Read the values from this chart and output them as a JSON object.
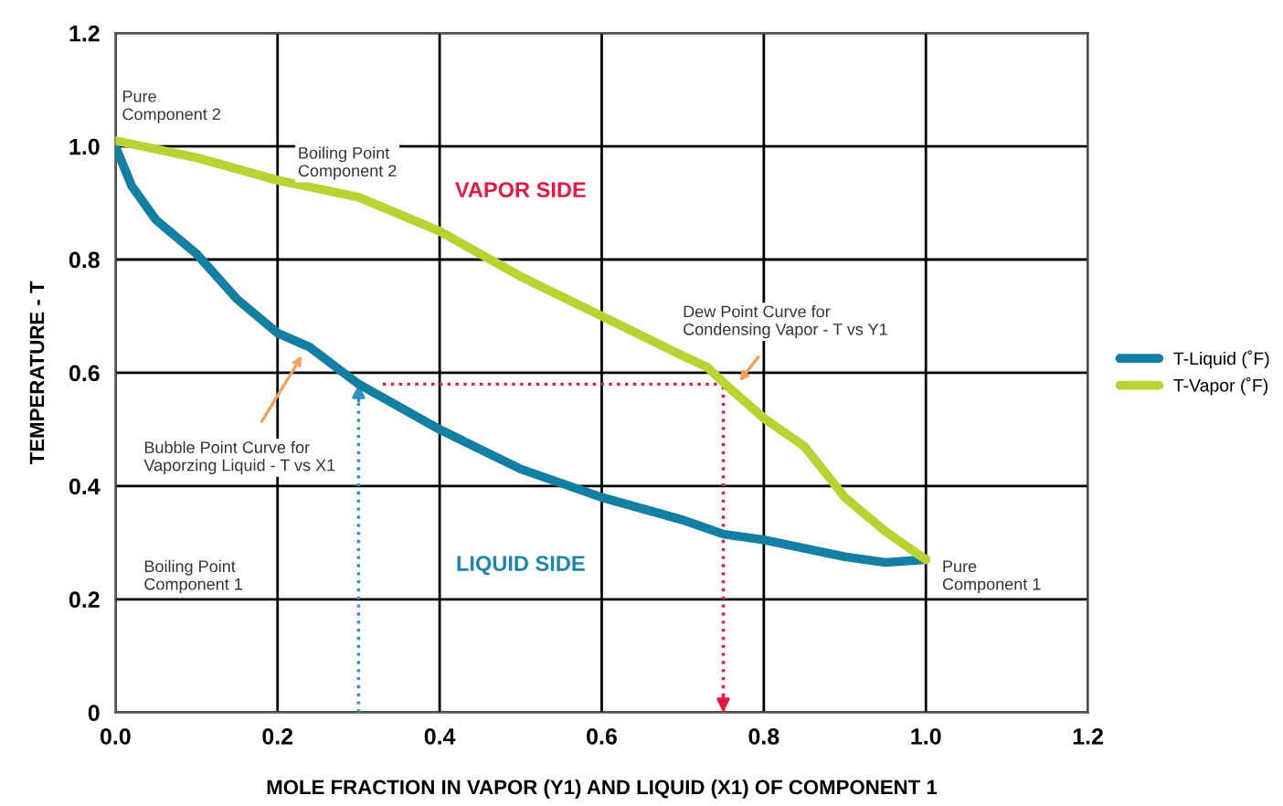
{
  "chart_data": {
    "type": "line",
    "xlabel": "MOLE FRACTION IN VAPOR (Y1) AND LIQUID (X1) OF COMPONENT 1",
    "ylabel": "TEMPERATURE - T",
    "xlim": [
      0,
      1.2
    ],
    "xticks": [
      {
        "value": 0,
        "label": "0.0"
      },
      0.2,
      0.4,
      0.6,
      0.8,
      {
        "value": 1,
        "label": "1.0"
      },
      1.2
    ],
    "ylim": [
      0,
      1.2
    ],
    "yticks": [
      0,
      0.2,
      0.4,
      0.6,
      0.8,
      {
        "value": 1,
        "label": "1.0"
      },
      1.2
    ],
    "grid": true,
    "legend": "right",
    "marker": "none",
    "line_style": "solid",
    "series": [
      {
        "name": "T-Liquid (˚F)",
        "color": "#137fa3",
        "x": [
          0,
          0.02,
          0.05,
          0.1,
          0.15,
          0.2,
          0.24,
          0.3,
          0.4,
          0.5,
          0.6,
          0.7,
          0.75,
          0.8,
          0.85,
          0.9,
          0.95,
          1.0
        ],
        "values": [
          1.0,
          0.93,
          0.87,
          0.81,
          0.73,
          0.67,
          0.645,
          0.58,
          0.5,
          0.43,
          0.38,
          0.34,
          0.315,
          0.305,
          0.29,
          0.275,
          0.265,
          0.27
        ]
      },
      {
        "name": "T-Vapor (˚F)",
        "color": "#b8d432",
        "x": [
          0,
          0.1,
          0.2,
          0.3,
          0.4,
          0.5,
          0.6,
          0.7,
          0.73,
          0.76,
          0.8,
          0.85,
          0.9,
          0.95,
          1.0
        ],
        "values": [
          1.01,
          0.98,
          0.94,
          0.91,
          0.85,
          0.77,
          0.7,
          0.63,
          0.61,
          0.57,
          0.52,
          0.47,
          0.38,
          0.32,
          0.27
        ]
      }
    ],
    "ref_lines": [
      {
        "axis": "x",
        "value": 0.3,
        "color": "#2f8fc0",
        "line_style": "dotted"
      },
      {
        "axis": "x",
        "value": 0.75,
        "color": "#e8173f",
        "line_style": "dotted"
      },
      {
        "axis": "y",
        "value": 0.58,
        "color": "#e8173f",
        "line_style": "dotted"
      }
    ],
    "annotations": [
      {
        "text": "Pure\nComponent 2",
        "x": 0,
        "y": 1.0
      },
      "Boiling Point\nComponent 2",
      "VAPOR SIDE",
      {
        "text": "Dew Point Curve for\nCondensing Vapor - T vs Y1",
        "x": 0.77,
        "y": 0.585
      },
      {
        "text": "Bubble Point Curve for\nVaporzing Liquid - T vs X1",
        "x": 0.23,
        "y": 0.63
      },
      "Boiling Point\nComponent 1",
      "LIQUID SIDE",
      {
        "text": "Pure\nComponent 1",
        "x": 1.0,
        "y": 0.27
      }
    ]
  }
}
